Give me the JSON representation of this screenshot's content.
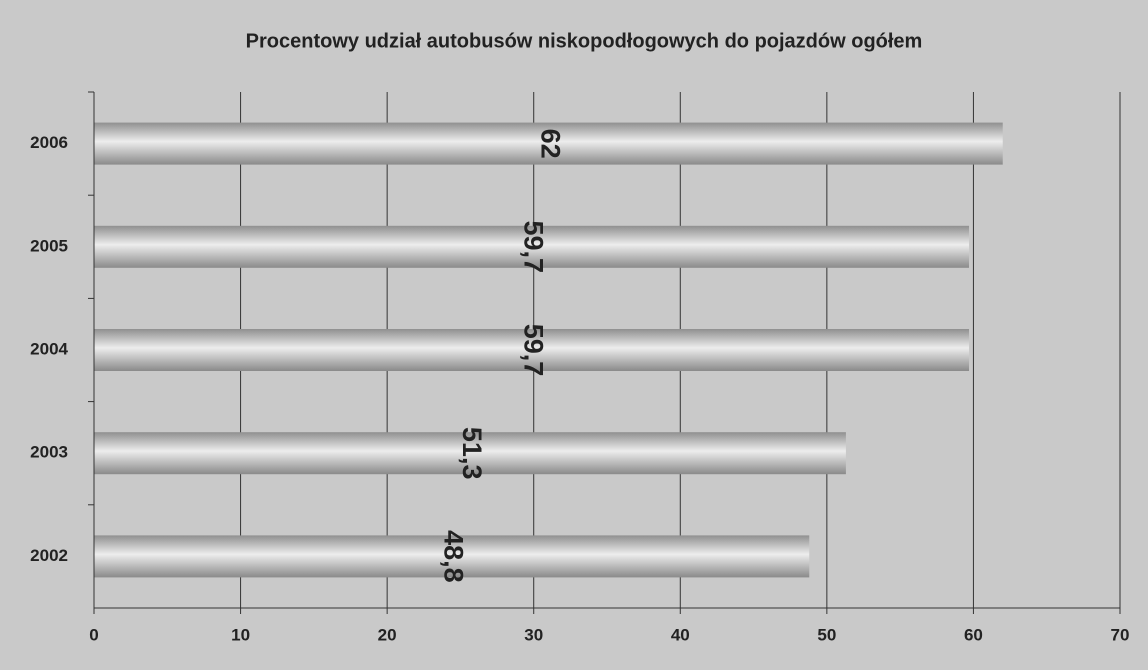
{
  "chart_data": {
    "type": "barh",
    "title": "Procentowy udział autobusów niskopodłogowych do pojazdów ogółem",
    "categories": [
      "2006",
      "2005",
      "2004",
      "2003",
      "2002"
    ],
    "values": [
      62,
      59.7,
      59.7,
      51.3,
      48.8
    ],
    "value_labels": [
      "62",
      "59,7",
      "59,7",
      "51,3",
      "48,8"
    ],
    "color": "#a8a8a8",
    "xlim": [
      0,
      70
    ],
    "xticks": [
      0,
      10,
      20,
      30,
      40,
      50,
      60,
      70
    ],
    "grid": true
  }
}
